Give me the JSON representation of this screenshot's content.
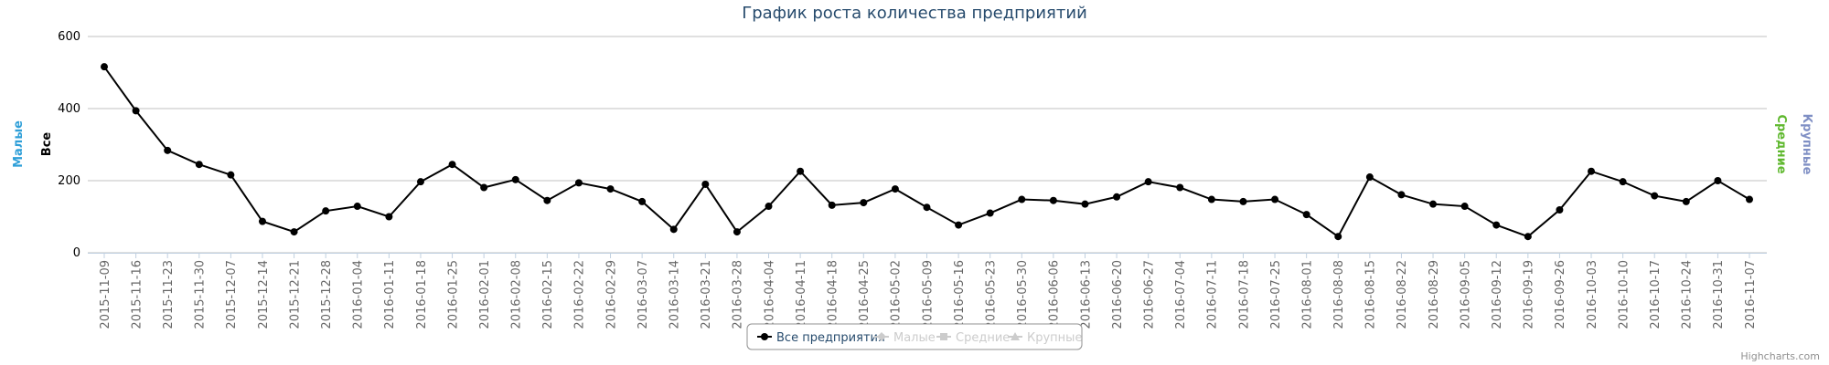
{
  "chart_data": {
    "type": "line",
    "title": "График роста количества предприятий",
    "credits": "Highcharts.com",
    "axis_titles": [
      {
        "text": "Малые",
        "color": "#2f9fd8",
        "side": "left"
      },
      {
        "text": "Все",
        "color": "#000000",
        "side": "left"
      },
      {
        "text": "Средние",
        "color": "#5fb82e",
        "side": "right"
      },
      {
        "text": "Крупные",
        "color": "#7f8fc4",
        "side": "right"
      }
    ],
    "categories": [
      "2015-11-09",
      "2015-11-16",
      "2015-11-23",
      "2015-11-30",
      "2015-12-07",
      "2015-12-14",
      "2015-12-21",
      "2015-12-28",
      "2016-01-04",
      "2016-01-11",
      "2016-01-18",
      "2016-01-25",
      "2016-02-01",
      "2016-02-08",
      "2016-02-15",
      "2016-02-22",
      "2016-02-29",
      "2016-03-07",
      "2016-03-14",
      "2016-03-21",
      "2016-03-28",
      "2016-04-04",
      "2016-04-11",
      "2016-04-18",
      "2016-04-25",
      "2016-05-02",
      "2016-05-09",
      "2016-05-16",
      "2016-05-23",
      "2016-05-30",
      "2016-06-06",
      "2016-06-13",
      "2016-06-20",
      "2016-06-27",
      "2016-07-04",
      "2016-07-11",
      "2016-07-18",
      "2016-07-25",
      "2016-08-01",
      "2016-08-08",
      "2016-08-15",
      "2016-08-22",
      "2016-08-29",
      "2016-09-05",
      "2016-09-12",
      "2016-09-19",
      "2016-09-26",
      "2016-10-03",
      "2016-10-10",
      "2016-10-17",
      "2016-10-24",
      "2016-10-31",
      "2016-11-07"
    ],
    "series": [
      {
        "name": "Все предприятия",
        "color": "#000000",
        "visible": true,
        "values": [
          516,
          394,
          284,
          245,
          216,
          87,
          58,
          116,
          129,
          100,
          197,
          245,
          181,
          203,
          145,
          194,
          177,
          142,
          65,
          190,
          58,
          129,
          226,
          132,
          139,
          177,
          126,
          77,
          110,
          148,
          145,
          135,
          155,
          197,
          181,
          148,
          142,
          148,
          106,
          45,
          210,
          161,
          135,
          129,
          77,
          45,
          119,
          226,
          197,
          158,
          142,
          200,
          148
        ]
      },
      {
        "name": "Малые",
        "color": "#cccccc",
        "visible": false
      },
      {
        "name": "Средние",
        "color": "#cccccc",
        "visible": false
      },
      {
        "name": "Крупные",
        "color": "#cccccc",
        "visible": false
      }
    ],
    "ylim": [
      0,
      600
    ],
    "yticks": [
      0,
      200,
      400,
      600
    ],
    "grid": true
  }
}
